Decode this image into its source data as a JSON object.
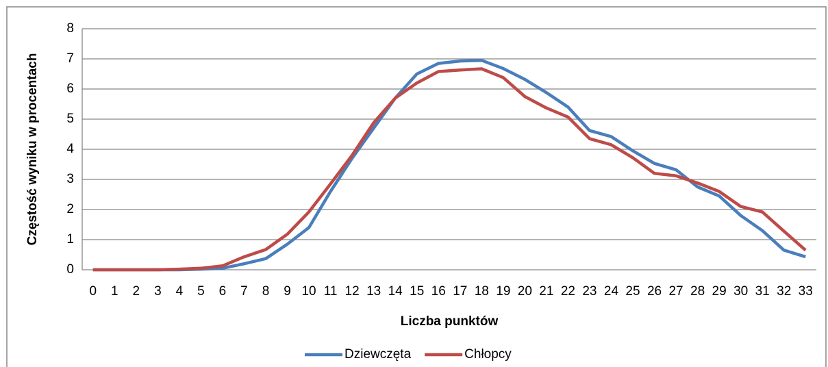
{
  "chart_data": {
    "type": "line",
    "x_label": "Liczba punktów",
    "y_label": "Częstość wyniku w procentach",
    "categories": [
      0,
      1,
      2,
      3,
      4,
      5,
      6,
      7,
      8,
      9,
      10,
      11,
      12,
      13,
      14,
      15,
      16,
      17,
      18,
      19,
      20,
      21,
      22,
      23,
      24,
      25,
      26,
      27,
      28,
      29,
      30,
      31,
      32,
      33
    ],
    "series": [
      {
        "name": "Dziewczęta",
        "color": "#4a7ebb",
        "values": [
          0,
          0,
          0,
          0,
          0,
          0.02,
          0.05,
          0.2,
          0.37,
          0.85,
          1.4,
          2.6,
          3.7,
          4.7,
          5.7,
          6.5,
          6.85,
          6.93,
          6.95,
          6.68,
          6.32,
          5.88,
          5.4,
          4.62,
          4.42,
          3.95,
          3.53,
          3.32,
          2.75,
          2.45,
          1.8,
          1.3,
          0.65,
          0.43
        ]
      },
      {
        "name": "Chłopcy",
        "color": "#be4b48",
        "values": [
          0,
          0,
          0,
          0,
          0.02,
          0.05,
          0.13,
          0.43,
          0.67,
          1.18,
          1.92,
          2.85,
          3.8,
          4.88,
          5.7,
          6.2,
          6.58,
          6.63,
          6.67,
          6.38,
          5.75,
          5.37,
          5.07,
          4.35,
          4.15,
          3.72,
          3.2,
          3.12,
          2.88,
          2.6,
          2.1,
          1.92,
          1.28,
          0.65
        ]
      }
    ],
    "ylim": [
      0,
      8
    ],
    "yticks": [
      0,
      1,
      2,
      3,
      4,
      5,
      6,
      7,
      8
    ],
    "grid": true,
    "legend": "bottom"
  }
}
